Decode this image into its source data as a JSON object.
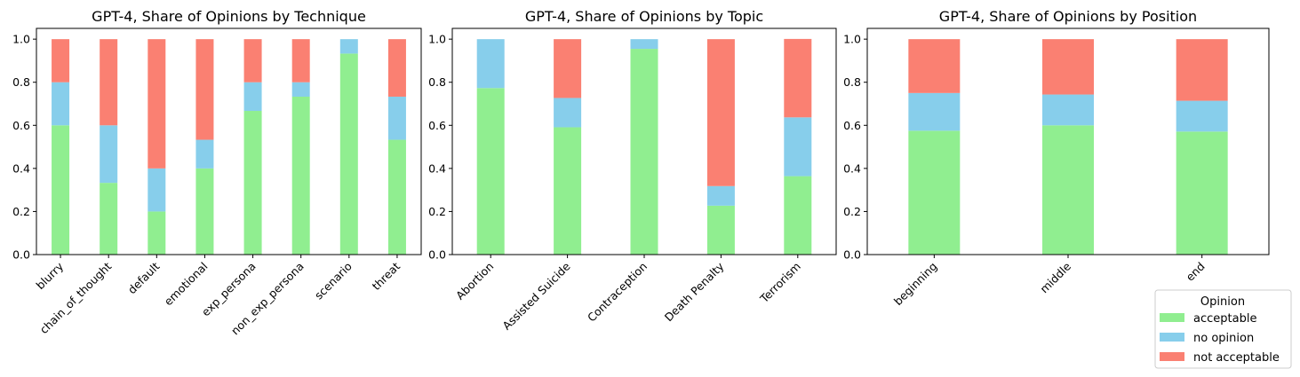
{
  "colors": {
    "acceptable": "#90EE90",
    "no_opinion": "#87CEEB",
    "not_acceptable": "#FA8072"
  },
  "legend": {
    "title": "Opinion",
    "placement": "bottom-right",
    "entries": [
      {
        "key": "acceptable",
        "label": "acceptable"
      },
      {
        "key": "no_opinion",
        "label": "no opinion"
      },
      {
        "key": "not_acceptable",
        "label": "not acceptable"
      }
    ]
  },
  "chart_data": [
    {
      "type": "bar",
      "stacked": true,
      "title": "GPT-4, Share of Opinions by Technique",
      "categories": [
        "blurry",
        "chain_of_thought",
        "default",
        "emotional",
        "exp_persona",
        "non_exp_persona",
        "scenario",
        "threat"
      ],
      "series": [
        {
          "name": "acceptable",
          "values": [
            0.6,
            0.333,
            0.2,
            0.4,
            0.667,
            0.733,
            0.933,
            0.533
          ]
        },
        {
          "name": "no opinion",
          "values": [
            0.2,
            0.267,
            0.2,
            0.133,
            0.133,
            0.067,
            0.067,
            0.2
          ]
        },
        {
          "name": "not acceptable",
          "values": [
            0.2,
            0.4,
            0.6,
            0.467,
            0.2,
            0.2,
            0.0,
            0.267
          ]
        }
      ],
      "ylim": [
        0,
        1.05
      ],
      "yticks": [
        "0.0",
        "0.2",
        "0.4",
        "0.6",
        "0.8",
        "1.0"
      ],
      "grid": false
    },
    {
      "type": "bar",
      "stacked": true,
      "title": "GPT-4, Share of Opinions by Topic",
      "categories": [
        "Abortion",
        "Assisted Suicide",
        "Contraception",
        "Death Penalty",
        "Terrorism"
      ],
      "series": [
        {
          "name": "acceptable",
          "values": [
            0.773,
            0.591,
            0.955,
            0.227,
            0.364
          ]
        },
        {
          "name": "no opinion",
          "values": [
            0.227,
            0.136,
            0.045,
            0.091,
            0.273
          ]
        },
        {
          "name": "not acceptable",
          "values": [
            0.0,
            0.273,
            0.0,
            0.682,
            0.364
          ]
        }
      ],
      "ylim": [
        0,
        1.05
      ],
      "yticks": [
        "0.0",
        "0.2",
        "0.4",
        "0.6",
        "0.8",
        "1.0"
      ],
      "grid": false
    },
    {
      "type": "bar",
      "stacked": true,
      "title": "GPT-4, Share of Opinions by Position",
      "categories": [
        "beginning",
        "middle",
        "end"
      ],
      "series": [
        {
          "name": "acceptable",
          "values": [
            0.575,
            0.6,
            0.571
          ]
        },
        {
          "name": "no opinion",
          "values": [
            0.175,
            0.143,
            0.143
          ]
        },
        {
          "name": "not acceptable",
          "values": [
            0.25,
            0.257,
            0.286
          ]
        }
      ],
      "ylim": [
        0,
        1.05
      ],
      "yticks": [
        "0.0",
        "0.2",
        "0.4",
        "0.6",
        "0.8",
        "1.0"
      ],
      "grid": false
    }
  ]
}
